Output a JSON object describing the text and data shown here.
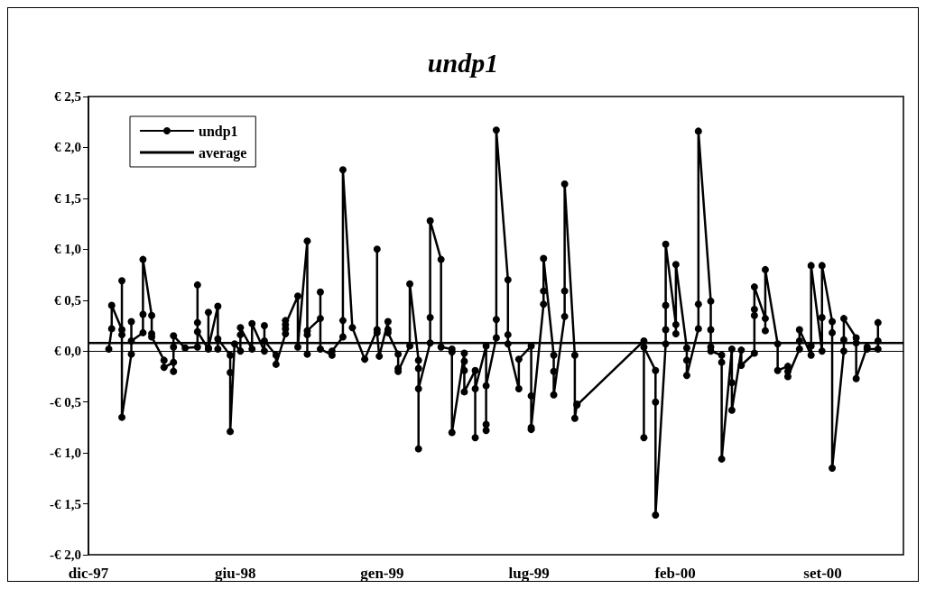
{
  "chart_data": {
    "type": "line",
    "title": "undp1",
    "legend": "top left",
    "grid": false,
    "xlim": [
      "1997-12-01",
      "2000-12-26"
    ],
    "xticks": [
      {
        "value": "1997-12-01",
        "label": "dic-97"
      },
      {
        "value": "1998-06-21",
        "label": "giu-98"
      },
      {
        "value": "1999-01-09",
        "label": "gen-99"
      },
      {
        "value": "1999-07-30",
        "label": "lug-99"
      },
      {
        "value": "2000-02-16",
        "label": "feb-00"
      },
      {
        "value": "2000-09-06",
        "label": "set-00"
      }
    ],
    "ylim": [
      -2,
      2.5
    ],
    "yticks": [
      {
        "value": -2,
        "label": "-€ 2,0"
      },
      {
        "value": -1.5,
        "label": "-€ 1,5"
      },
      {
        "value": -1,
        "label": "-€ 1,0"
      },
      {
        "value": -0.5,
        "label": "-€ 0,5"
      },
      {
        "value": 0,
        "label": "€ 0,0"
      },
      {
        "value": 0.5,
        "label": "€ 0,5"
      },
      {
        "value": 1,
        "label": "€ 1,0"
      },
      {
        "value": 1.5,
        "label": "€ 1,5"
      },
      {
        "value": 2,
        "label": "€ 2,0"
      },
      {
        "value": 2.5,
        "label": "€ 2,5"
      }
    ],
    "series": [
      {
        "name": "undp1",
        "color": "#000000",
        "marker": "circle",
        "x": [
          "1997-12-29",
          "1998-01-02",
          "1998-01-02",
          "1998-01-16",
          "1998-01-16",
          "1998-01-16",
          "1998-01-16",
          "1998-01-29",
          "1998-01-29",
          "1998-01-29",
          "1998-02-14",
          "1998-02-14",
          "1998-02-14",
          "1998-02-26",
          "1998-02-26",
          "1998-02-26",
          "1998-03-15",
          "1998-03-15",
          "1998-03-28",
          "1998-03-28",
          "1998-03-28",
          "1998-03-28",
          "1998-04-13",
          "1998-04-30",
          "1998-04-30",
          "1998-04-30",
          "1998-04-30",
          "1998-05-15",
          "1998-05-15",
          "1998-05-15",
          "1998-05-28",
          "1998-05-28",
          "1998-05-28",
          "1998-06-14",
          "1998-06-14",
          "1998-06-14",
          "1998-06-20",
          "1998-06-28",
          "1998-06-28",
          "1998-06-28",
          "1998-07-14",
          "1998-07-14",
          "1998-07-31",
          "1998-07-31",
          "1998-07-31",
          "1998-08-16",
          "1998-08-16",
          "1998-08-29",
          "1998-08-29",
          "1998-08-29",
          "1998-08-29",
          "1998-09-15",
          "1998-09-15",
          "1998-09-28",
          "1998-09-28",
          "1998-09-28",
          "1998-09-28",
          "1998-10-16",
          "1998-10-16",
          "1998-10-16",
          "1998-11-01",
          "1998-11-01",
          "1998-11-16",
          "1998-11-16",
          "1998-11-16",
          "1998-11-29",
          "1998-12-16",
          "1999-01-02",
          "1999-01-02",
          "1999-01-02",
          "1999-01-05",
          "1999-01-17",
          "1999-01-17",
          "1999-01-17",
          "1999-01-31",
          "1999-01-31",
          "1999-01-31",
          "1999-02-16",
          "1999-02-16",
          "1999-02-28",
          "1999-02-28",
          "1999-02-28",
          "1999-02-28",
          "1999-03-16",
          "1999-03-16",
          "1999-03-16",
          "1999-03-31",
          "1999-03-31",
          "1999-04-15",
          "1999-04-15",
          "1999-04-15",
          "1999-05-02",
          "1999-05-02",
          "1999-05-02",
          "1999-05-02",
          "1999-05-17",
          "1999-05-17",
          "1999-05-17",
          "1999-06-01",
          "1999-06-01",
          "1999-06-01",
          "1999-06-01",
          "1999-06-15",
          "1999-06-15",
          "1999-06-15",
          "1999-07-01",
          "1999-07-01",
          "1999-07-01",
          "1999-07-16",
          "1999-07-16",
          "1999-08-02",
          "1999-08-02",
          "1999-08-02",
          "1999-08-02",
          "1999-08-19",
          "1999-08-19",
          "1999-08-19",
          "1999-09-02",
          "1999-09-02",
          "1999-09-02",
          "1999-09-17",
          "1999-09-17",
          "1999-09-17",
          "1999-10-01",
          "1999-10-01",
          "1999-10-04",
          "1999-10-04",
          "2000-01-04",
          "2000-01-04",
          "2000-01-04",
          "2000-01-20",
          "2000-01-20",
          "2000-01-20",
          "2000-02-03",
          "2000-02-03",
          "2000-02-03",
          "2000-02-03",
          "2000-02-17",
          "2000-02-17",
          "2000-02-17",
          "2000-03-03",
          "2000-03-03",
          "2000-03-03",
          "2000-03-19",
          "2000-03-19",
          "2000-03-19",
          "2000-04-05",
          "2000-04-05",
          "2000-04-05",
          "2000-04-05",
          "2000-04-20",
          "2000-04-20",
          "2000-04-20",
          "2000-05-04",
          "2000-05-04",
          "2000-05-04",
          "2000-05-17",
          "2000-05-17",
          "2000-06-04",
          "2000-06-04",
          "2000-06-04",
          "2000-06-04",
          "2000-06-19",
          "2000-06-19",
          "2000-06-19",
          "2000-07-06",
          "2000-07-06",
          "2000-07-20",
          "2000-07-20",
          "2000-07-20",
          "2000-08-05",
          "2000-08-05",
          "2000-08-05",
          "2000-08-21",
          "2000-08-21",
          "2000-08-21",
          "2000-09-05",
          "2000-09-05",
          "2000-09-05",
          "2000-09-19",
          "2000-09-19",
          "2000-09-19",
          "2000-10-05",
          "2000-10-05",
          "2000-10-05",
          "2000-10-22",
          "2000-10-22",
          "2000-10-22",
          "2000-11-06",
          "2000-11-06",
          "2000-11-21",
          "2000-11-21",
          "2000-11-21"
        ],
        "values": [
          0.02,
          0.22,
          0.45,
          0.21,
          0.69,
          0.16,
          -0.65,
          -0.03,
          0.29,
          0.1,
          0.18,
          0.36,
          0.9,
          0.35,
          0.17,
          0.14,
          -0.09,
          -0.16,
          -0.11,
          -0.2,
          0.04,
          0.15,
          0.03,
          0.04,
          0.65,
          0.28,
          0.19,
          0.02,
          0.38,
          0.03,
          0.44,
          0.02,
          0.12,
          -0.04,
          -0.21,
          -0.79,
          0.07,
          0.0,
          0.16,
          0.23,
          0.02,
          0.27,
          0.0,
          0.25,
          0.1,
          -0.04,
          -0.13,
          0.17,
          0.22,
          0.3,
          0.26,
          0.54,
          0.04,
          1.08,
          -0.03,
          0.16,
          0.2,
          0.32,
          0.58,
          0.02,
          -0.04,
          0.0,
          0.14,
          0.3,
          1.78,
          0.23,
          -0.08,
          0.21,
          1.0,
          0.18,
          -0.05,
          0.29,
          0.21,
          0.18,
          -0.03,
          -0.17,
          -0.2,
          0.05,
          0.66,
          -0.09,
          -0.17,
          -0.96,
          -0.37,
          0.08,
          0.33,
          1.28,
          0.9,
          0.04,
          0.02,
          -0.01,
          -0.8,
          -0.02,
          -0.1,
          -0.19,
          -0.4,
          -0.19,
          -0.85,
          -0.37,
          0.05,
          -0.78,
          -0.72,
          -0.34,
          0.13,
          0.31,
          2.17,
          0.7,
          0.16,
          0.07,
          -0.37,
          -0.08,
          0.05,
          -0.44,
          -0.77,
          -0.75,
          0.46,
          0.59,
          0.91,
          -0.04,
          -0.2,
          -0.43,
          0.34,
          0.59,
          1.64,
          -0.04,
          -0.66,
          -0.52,
          -0.53,
          0.1,
          -0.85,
          0.04,
          -0.19,
          -0.5,
          -1.61,
          0.07,
          0.21,
          0.45,
          1.05,
          0.26,
          0.17,
          0.85,
          0.03,
          -0.09,
          -0.24,
          0.22,
          0.46,
          2.16,
          0.49,
          0.21,
          0.04,
          0.0,
          -0.04,
          -0.11,
          -1.06,
          0.02,
          -0.31,
          -0.58,
          0.01,
          -0.14,
          -0.02,
          0.35,
          0.41,
          0.63,
          0.32,
          0.2,
          0.8,
          0.07,
          -0.19,
          -0.15,
          -0.2,
          -0.25,
          0.02,
          0.1,
          0.21,
          -0.04,
          0.05,
          0.84,
          0.0,
          0.33,
          0.84,
          0.29,
          0.18,
          -1.15,
          0.0,
          0.11,
          0.32,
          0.13,
          0.08,
          -0.27,
          0.04,
          0.02,
          0.02,
          0.1,
          0.28
        ]
      },
      {
        "name": "average",
        "color": "#000000",
        "marker": "none",
        "x": [
          "1997-12-01",
          "2000-12-26"
        ],
        "values": [
          0.08,
          0.08
        ]
      }
    ]
  }
}
